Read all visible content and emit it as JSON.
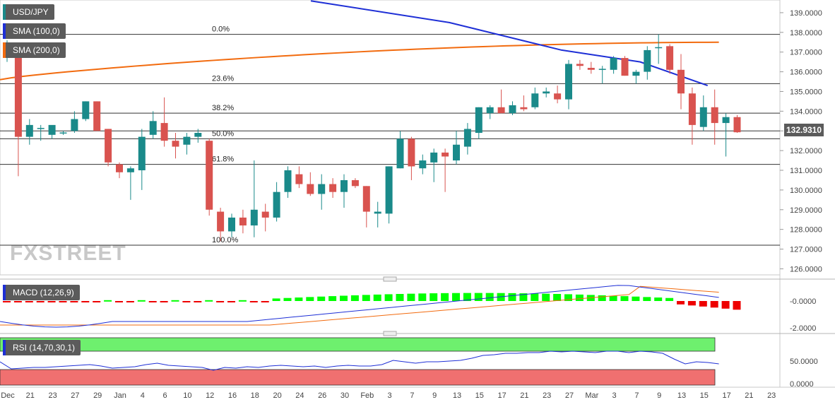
{
  "chart_data": {
    "type": "candlestick",
    "symbol": "USD/JPY",
    "last_price": "132.9310",
    "price_axis": {
      "ticks": [
        "139.0000",
        "138.0000",
        "137.0000",
        "136.0000",
        "135.0000",
        "134.0000",
        "133.0000",
        "132.0000",
        "131.0000",
        "130.0000",
        "129.0000",
        "128.0000",
        "127.0000",
        "126.0000"
      ],
      "range": [
        125.8,
        139.5
      ]
    },
    "x_ticks": [
      "Dec",
      "21",
      "23",
      "27",
      "29",
      "Jan",
      "4",
      "6",
      "10",
      "12",
      "16",
      "18",
      "20",
      "24",
      "26",
      "30",
      "Feb",
      "3",
      "7",
      "9",
      "13",
      "15",
      "17",
      "21",
      "23",
      "27",
      "Mar",
      "3",
      "7",
      "9",
      "13",
      "15",
      "17",
      "21",
      "23"
    ],
    "candles": [
      {
        "o": 136.8,
        "h": 137.6,
        "l": 136.5,
        "c": 137.4
      },
      {
        "o": 137.1,
        "h": 137.4,
        "l": 130.7,
        "c": 132.7
      },
      {
        "o": 132.7,
        "h": 133.6,
        "l": 132.3,
        "c": 133.3
      },
      {
        "o": 133.1,
        "h": 133.3,
        "l": 132.5,
        "c": 133.15
      },
      {
        "o": 132.8,
        "h": 133.2,
        "l": 132.6,
        "c": 133.3
      },
      {
        "o": 132.9,
        "h": 133.0,
        "l": 132.8,
        "c": 132.92
      },
      {
        "o": 133.0,
        "h": 134.0,
        "l": 132.9,
        "c": 133.6
      },
      {
        "o": 133.6,
        "h": 134.5,
        "l": 133.5,
        "c": 134.5
      },
      {
        "o": 134.5,
        "h": 134.5,
        "l": 133.0,
        "c": 133.0
      },
      {
        "o": 133.1,
        "h": 133.1,
        "l": 131.2,
        "c": 131.4
      },
      {
        "o": 131.3,
        "h": 131.4,
        "l": 130.6,
        "c": 130.9
      },
      {
        "o": 130.9,
        "h": 131.2,
        "l": 129.5,
        "c": 131.1
      },
      {
        "o": 131.0,
        "h": 133.1,
        "l": 130.0,
        "c": 132.7
      },
      {
        "o": 132.8,
        "h": 134.0,
        "l": 132.6,
        "c": 133.5
      },
      {
        "o": 133.4,
        "h": 134.7,
        "l": 132.2,
        "c": 132.5
      },
      {
        "o": 132.5,
        "h": 132.9,
        "l": 131.6,
        "c": 132.2
      },
      {
        "o": 132.3,
        "h": 132.9,
        "l": 131.8,
        "c": 132.7
      },
      {
        "o": 132.7,
        "h": 133.1,
        "l": 132.4,
        "c": 132.9
      },
      {
        "o": 132.5,
        "h": 132.6,
        "l": 128.7,
        "c": 129.0
      },
      {
        "o": 128.9,
        "h": 129.1,
        "l": 127.4,
        "c": 127.9
      },
      {
        "o": 127.9,
        "h": 128.8,
        "l": 127.6,
        "c": 128.6
      },
      {
        "o": 128.6,
        "h": 129.0,
        "l": 127.8,
        "c": 128.2
      },
      {
        "o": 128.2,
        "h": 131.5,
        "l": 127.6,
        "c": 129.0
      },
      {
        "o": 128.9,
        "h": 129.3,
        "l": 127.9,
        "c": 128.6
      },
      {
        "o": 128.6,
        "h": 130.4,
        "l": 128.4,
        "c": 129.9
      },
      {
        "o": 129.9,
        "h": 131.2,
        "l": 129.6,
        "c": 131.0
      },
      {
        "o": 130.8,
        "h": 131.2,
        "l": 130.1,
        "c": 130.3
      },
      {
        "o": 130.3,
        "h": 130.9,
        "l": 129.7,
        "c": 129.8
      },
      {
        "o": 129.8,
        "h": 130.8,
        "l": 129.0,
        "c": 130.3
      },
      {
        "o": 130.3,
        "h": 130.6,
        "l": 129.6,
        "c": 129.9
      },
      {
        "o": 129.9,
        "h": 130.8,
        "l": 129.1,
        "c": 130.5
      },
      {
        "o": 130.5,
        "h": 130.6,
        "l": 130.1,
        "c": 130.2
      },
      {
        "o": 130.2,
        "h": 130.2,
        "l": 128.1,
        "c": 128.9
      },
      {
        "o": 128.8,
        "h": 129.4,
        "l": 128.1,
        "c": 128.9
      },
      {
        "o": 128.8,
        "h": 131.2,
        "l": 128.3,
        "c": 131.2
      },
      {
        "o": 131.1,
        "h": 133.0,
        "l": 131.1,
        "c": 132.6
      },
      {
        "o": 132.6,
        "h": 132.7,
        "l": 130.5,
        "c": 131.2
      },
      {
        "o": 131.1,
        "h": 131.8,
        "l": 130.8,
        "c": 131.5
      },
      {
        "o": 131.4,
        "h": 132.1,
        "l": 130.4,
        "c": 131.9
      },
      {
        "o": 131.9,
        "h": 132.1,
        "l": 129.9,
        "c": 131.7
      },
      {
        "o": 131.5,
        "h": 133.0,
        "l": 131.3,
        "c": 132.3
      },
      {
        "o": 132.2,
        "h": 133.4,
        "l": 131.8,
        "c": 133.1
      },
      {
        "o": 132.9,
        "h": 134.2,
        "l": 132.6,
        "c": 134.2
      },
      {
        "o": 133.9,
        "h": 134.3,
        "l": 133.6,
        "c": 134.2
      },
      {
        "o": 134.2,
        "h": 135.1,
        "l": 133.9,
        "c": 133.9
      },
      {
        "o": 133.9,
        "h": 134.5,
        "l": 133.8,
        "c": 134.3
      },
      {
        "o": 134.2,
        "h": 134.8,
        "l": 134.0,
        "c": 134.1
      },
      {
        "o": 134.2,
        "h": 135.2,
        "l": 134.1,
        "c": 134.9
      },
      {
        "o": 134.9,
        "h": 135.2,
        "l": 134.7,
        "c": 135.0
      },
      {
        "o": 134.9,
        "h": 135.3,
        "l": 134.4,
        "c": 134.6
      },
      {
        "o": 134.6,
        "h": 136.6,
        "l": 134.1,
        "c": 136.4
      },
      {
        "o": 136.4,
        "h": 136.6,
        "l": 136.1,
        "c": 136.3
      },
      {
        "o": 136.2,
        "h": 136.5,
        "l": 135.9,
        "c": 136.1
      },
      {
        "o": 136.1,
        "h": 136.3,
        "l": 135.4,
        "c": 136.15
      },
      {
        "o": 136.1,
        "h": 136.8,
        "l": 135.9,
        "c": 136.7
      },
      {
        "o": 136.7,
        "h": 136.8,
        "l": 135.8,
        "c": 135.8
      },
      {
        "o": 135.8,
        "h": 136.1,
        "l": 135.4,
        "c": 136.0
      },
      {
        "o": 136.0,
        "h": 137.3,
        "l": 135.6,
        "c": 137.1
      },
      {
        "o": 137.2,
        "h": 137.9,
        "l": 136.4,
        "c": 137.25
      },
      {
        "o": 137.3,
        "h": 137.4,
        "l": 135.9,
        "c": 136.1
      },
      {
        "o": 136.1,
        "h": 136.9,
        "l": 134.1,
        "c": 134.9
      },
      {
        "o": 134.9,
        "h": 135.2,
        "l": 132.3,
        "c": 133.3
      },
      {
        "o": 133.2,
        "h": 134.8,
        "l": 133.0,
        "c": 134.2
      },
      {
        "o": 134.2,
        "h": 135.1,
        "l": 132.3,
        "c": 133.4
      },
      {
        "o": 133.4,
        "h": 133.9,
        "l": 131.7,
        "c": 133.7
      },
      {
        "o": 133.7,
        "h": 133.8,
        "l": 132.9,
        "c": 132.93
      }
    ],
    "indicators": {
      "sma100": {
        "label": "SMA (100,0)",
        "color": "#1e2fd6"
      },
      "sma200": {
        "label": "SMA (200,0)",
        "color": "#f26b0f"
      }
    },
    "fibonacci": [
      {
        "label": "0.0%",
        "value": 137.9
      },
      {
        "label": "23.6%",
        "value": 135.4
      },
      {
        "label": "38.2%",
        "value": 133.9
      },
      {
        "label": "50.0%",
        "value": 132.6
      },
      {
        "label": "61.8%",
        "value": 131.3
      },
      {
        "label": "100.0%",
        "value": 127.2
      }
    ],
    "macd": {
      "label": "MACD (12,26,9)",
      "ticks": [
        "-0.0000",
        "-2.0000"
      ],
      "hist_color_up": "#00ff00",
      "hist_color_down": "#ee0000",
      "line_color": "#1e2fd6",
      "signal_color": "#f26b0f"
    },
    "rsi": {
      "label": "RSI (14,70,30,1)",
      "ticks": [
        "50.0000",
        "0.0000"
      ],
      "overbought_color": "#6ef06e",
      "oversold_color": "#f07070",
      "line_color": "#1e2fd6"
    },
    "colors": {
      "up": "#1a8a8a",
      "down": "#d9534f"
    },
    "watermark": "FXSTREET"
  }
}
